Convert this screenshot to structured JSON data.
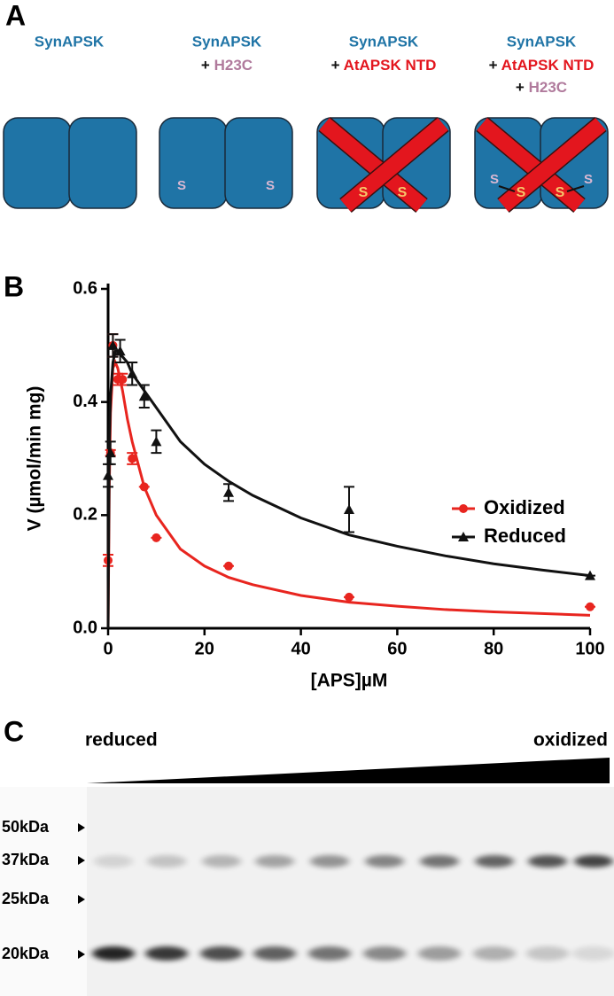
{
  "panel_a": {
    "label": "A",
    "columns": [
      {
        "title": "SynAPSK",
        "additions": []
      },
      {
        "title": "SynAPSK",
        "additions": [
          {
            "plus": "+",
            "text": "H23C",
            "color": "#b07a9c"
          }
        ]
      },
      {
        "title": "SynAPSK",
        "additions": [
          {
            "plus": "+",
            "text": "AtAPSK NTD",
            "color": "#e3161e"
          }
        ]
      },
      {
        "title": "SynAPSK",
        "additions": [
          {
            "plus": "+",
            "text": "AtAPSK NTD",
            "color": "#e3161e"
          },
          {
            "plus": "+",
            "text": "H23C",
            "color": "#b07a9c"
          }
        ]
      }
    ],
    "site_label": "S"
  },
  "panel_b": {
    "label": "B"
  },
  "chart_data": {
    "type": "scatter",
    "xlabel": "[APS]µM",
    "ylabel": "V (µmol/min mg)",
    "xlim": [
      0,
      100
    ],
    "ylim": [
      0,
      0.6
    ],
    "xticks": [
      0,
      20,
      40,
      60,
      80,
      100
    ],
    "yticks": [
      {
        "value": 0,
        "label": "0.0"
      },
      {
        "value": 0.2,
        "label": "0.2"
      },
      {
        "value": 0.4,
        "label": "0.4"
      },
      {
        "value": 0.6,
        "label": "0.6"
      }
    ],
    "legend": "right",
    "fit_x": [
      0,
      0.25,
      0.5,
      1,
      1.5,
      2,
      3,
      4,
      5,
      7.5,
      10,
      15,
      20,
      25,
      30,
      40,
      50,
      60,
      70,
      80,
      90,
      100
    ],
    "series": [
      {
        "name": "Oxidized",
        "color": "#e8251f",
        "marker": "circle",
        "x": [
          0,
          0.5,
          1,
          2,
          3,
          5,
          7.5,
          10,
          25,
          50,
          100
        ],
        "values": [
          0.12,
          0.31,
          0.5,
          0.44,
          0.44,
          0.3,
          0.25,
          0.16,
          0.11,
          0.055,
          0.038
        ],
        "errors": [
          0.01,
          0.005,
          0.02,
          0.01,
          0.01,
          0.01,
          0,
          0,
          0,
          0,
          0
        ],
        "fit": [
          0,
          0.25,
          0.38,
          0.46,
          0.47,
          0.46,
          0.42,
          0.37,
          0.33,
          0.25,
          0.2,
          0.14,
          0.11,
          0.09,
          0.077,
          0.058,
          0.046,
          0.039,
          0.033,
          0.029,
          0.026,
          0.023
        ]
      },
      {
        "name": "Reduced",
        "color": "#111111",
        "marker": "triangle",
        "x": [
          0,
          0.5,
          1,
          2.5,
          5,
          7.5,
          10,
          25,
          50,
          100
        ],
        "values": [
          0.27,
          0.31,
          0.5,
          0.49,
          0.45,
          0.41,
          0.33,
          0.24,
          0.21,
          0.093
        ],
        "errors": [
          0.02,
          0.02,
          0.02,
          0.02,
          0.02,
          0.02,
          0.02,
          0.015,
          0.04,
          0
        ],
        "fit": [
          0,
          0.32,
          0.41,
          0.47,
          0.49,
          0.49,
          0.48,
          0.47,
          0.45,
          0.42,
          0.39,
          0.33,
          0.29,
          0.26,
          0.235,
          0.195,
          0.165,
          0.145,
          0.128,
          0.114,
          0.103,
          0.093
        ]
      }
    ]
  },
  "panel_c": {
    "label": "C",
    "left": "reduced",
    "right": "oxidized",
    "markers": [
      "50kDa",
      "37kDa",
      "25kDa",
      "20kDa"
    ]
  }
}
